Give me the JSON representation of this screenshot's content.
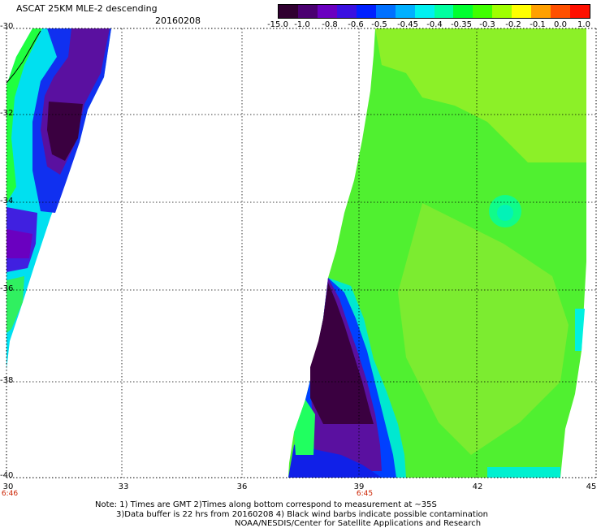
{
  "header": {
    "title": "ASCAT 25KM MLE-2 descending",
    "date": "20160208"
  },
  "colorbar": {
    "labels": [
      "-15.0",
      "-1.0",
      "-0.8",
      "-0.6",
      "-0.5",
      "-0.45",
      "-0.4",
      "-0.35",
      "-0.3",
      "-0.2",
      "-0.1",
      "0.0",
      "1.0"
    ],
    "colors": [
      "#300030",
      "#4a0070",
      "#6a00c0",
      "#3a10e0",
      "#0020ff",
      "#0070ff",
      "#00b0ff",
      "#00f0f0",
      "#00ffa0",
      "#00ff30",
      "#40ff00",
      "#a0ff00",
      "#ffff00",
      "#ffa000",
      "#ff5000",
      "#ff1000"
    ]
  },
  "map": {
    "lat_labels": [
      "-30",
      "-32",
      "-34",
      "-36",
      "-38",
      "-40"
    ],
    "lon_labels": [
      "30",
      "33",
      "36",
      "39",
      "42",
      "45"
    ],
    "time_labels": [
      "6:46",
      "6:45"
    ],
    "colors": {
      "deep_purple": "#3a0040",
      "purple": "#5a10a0",
      "blue_violet": "#4020e0",
      "blue": "#0040ff",
      "cyan": "#00e0f0",
      "aqua_green": "#00ffa0",
      "green": "#20ff40",
      "lime": "#80ff20",
      "yellow_green": "#a0f020"
    }
  },
  "notes": {
    "line1": "Note: 1) Times are GMT 2)Times along bottom correspond to measurement at ~35S",
    "line2": "3)Data buffer is 22 hrs from 20160208 4) Black wind barbs indicate possible contamination",
    "line3": "NOAA/NESDIS/Center for Satellite Applications and Research"
  }
}
